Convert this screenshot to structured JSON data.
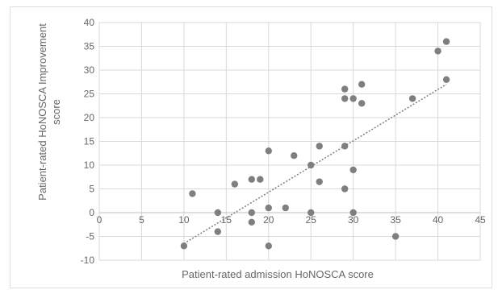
{
  "chart_data": {
    "type": "scatter",
    "title": "",
    "xlabel": "Patient-rated admission HoNOSCA score",
    "ylabel_lines": [
      "Patient-rated HoNOSCA Improvement",
      "score"
    ],
    "xlim": [
      0,
      45
    ],
    "ylim": [
      -10,
      40
    ],
    "x_ticks": [
      0,
      5,
      10,
      15,
      20,
      25,
      30,
      35,
      40,
      45
    ],
    "y_ticks": [
      -10,
      -5,
      0,
      5,
      10,
      15,
      20,
      25,
      30,
      35,
      40
    ],
    "grid": true,
    "legend": "none",
    "marker_color": "#7f7f7f",
    "trendline": {
      "type": "linear",
      "style": "dotted",
      "color": "#7f7f7f",
      "from": [
        10,
        -6.5
      ],
      "to": [
        41,
        27
      ]
    },
    "points": [
      {
        "x": 10,
        "y": -7
      },
      {
        "x": 11,
        "y": 4
      },
      {
        "x": 14,
        "y": 0
      },
      {
        "x": 14,
        "y": -4
      },
      {
        "x": 16,
        "y": 6
      },
      {
        "x": 18,
        "y": 7
      },
      {
        "x": 18,
        "y": 0
      },
      {
        "x": 18,
        "y": -2
      },
      {
        "x": 19,
        "y": 7
      },
      {
        "x": 20,
        "y": 13
      },
      {
        "x": 20,
        "y": 1
      },
      {
        "x": 20,
        "y": -7
      },
      {
        "x": 22,
        "y": 1
      },
      {
        "x": 23,
        "y": 12
      },
      {
        "x": 25,
        "y": 10
      },
      {
        "x": 25,
        "y": 0
      },
      {
        "x": 26,
        "y": 14
      },
      {
        "x": 26,
        "y": 6.5
      },
      {
        "x": 29,
        "y": 26
      },
      {
        "x": 29,
        "y": 24
      },
      {
        "x": 29,
        "y": 14
      },
      {
        "x": 29,
        "y": 5
      },
      {
        "x": 30,
        "y": 24
      },
      {
        "x": 30,
        "y": 9
      },
      {
        "x": 30,
        "y": 0
      },
      {
        "x": 31,
        "y": 27
      },
      {
        "x": 31,
        "y": 23
      },
      {
        "x": 35,
        "y": -5
      },
      {
        "x": 37,
        "y": 24
      },
      {
        "x": 40,
        "y": 34
      },
      {
        "x": 41,
        "y": 36
      },
      {
        "x": 41,
        "y": 28
      }
    ]
  }
}
